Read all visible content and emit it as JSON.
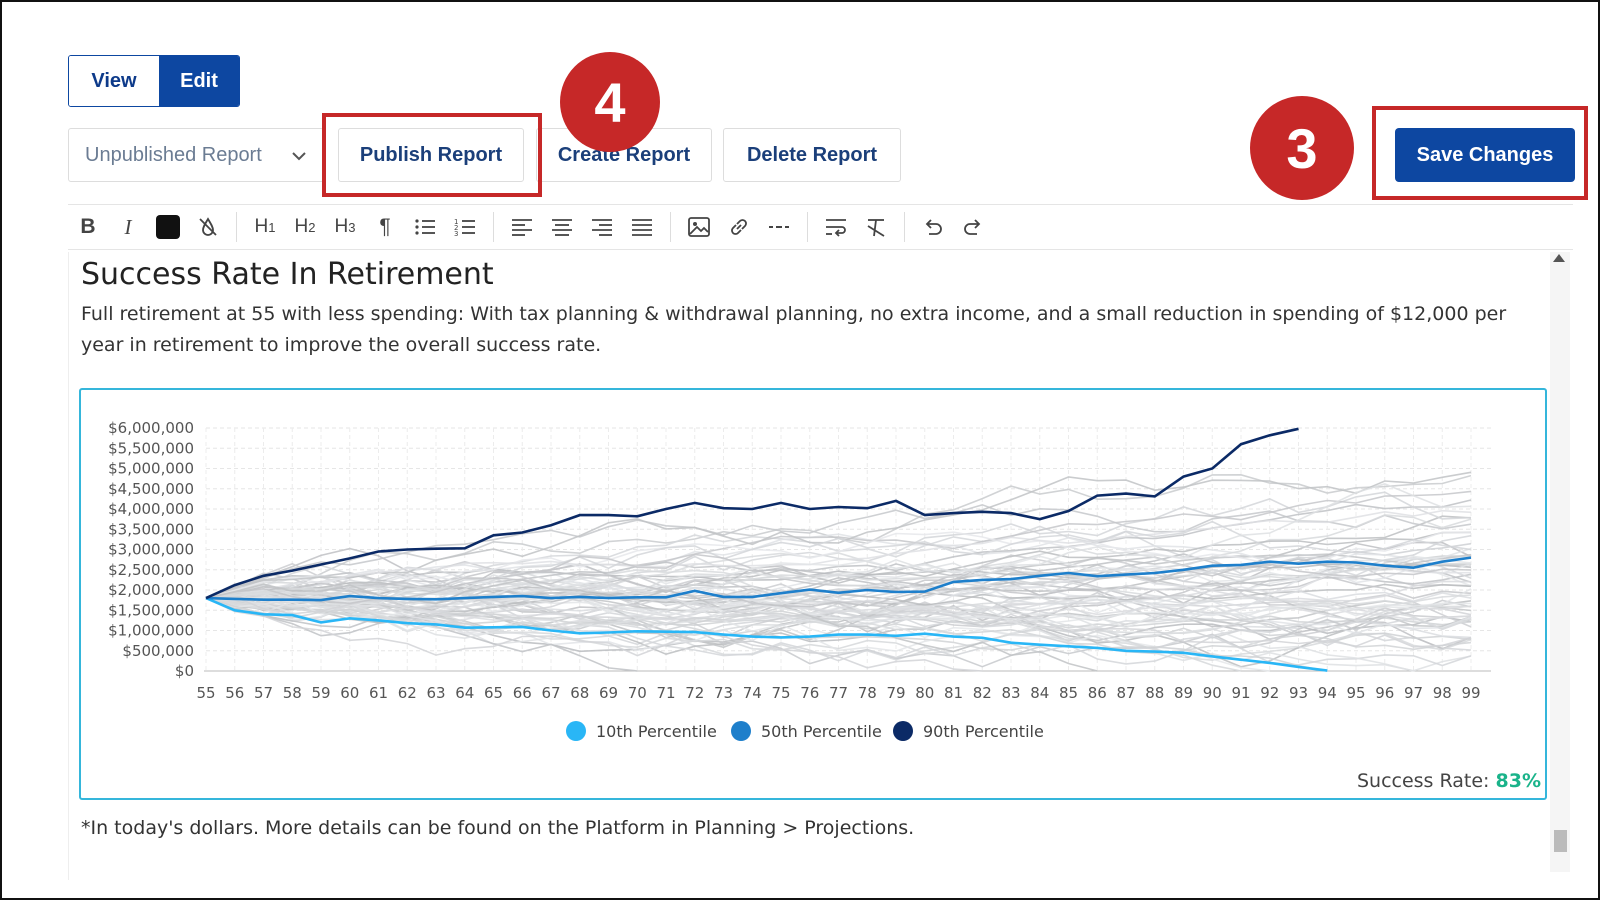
{
  "mode_toggle": {
    "view_label": "View",
    "edit_label": "Edit",
    "active": "Edit"
  },
  "report_actions": {
    "status_selected": "Unpublished Report",
    "publish_label": "Publish Report",
    "create_label": "Create Report",
    "delete_label": "Delete Report",
    "save_label": "Save Changes"
  },
  "callouts": {
    "step_publish": "4",
    "step_save": "3",
    "color": "#c62828"
  },
  "editor_toolbar": [
    "bold-icon",
    "italic-icon",
    "text-color-swatch",
    "clear-color-icon",
    "heading-1-icon",
    "heading-2-icon",
    "heading-3-icon",
    "paragraph-icon",
    "bullet-list-icon",
    "numbered-list-icon",
    "align-left-icon",
    "align-center-icon",
    "align-right-icon",
    "align-justify-icon",
    "image-icon",
    "link-icon",
    "horizontal-rule-icon",
    "wrap-text-icon",
    "clear-format-icon",
    "undo-icon",
    "redo-icon"
  ],
  "document": {
    "heading": "Success Rate In Retirement",
    "paragraph": "Full retirement at 55 with less spending: With tax planning & withdrawal planning, no extra income, and a small reduction in spending of $12,000 per year in retirement to improve the overall success rate.",
    "success_label": "Success Rate:",
    "success_value": "83%",
    "footnote": "*In today's dollars. More details can be found on the Platform in Planning > Projections."
  },
  "colors": {
    "brand": "#0d47a1",
    "success": "#1ab38a",
    "chart_border": "#35b6db"
  },
  "chart_data": {
    "type": "line",
    "title": "",
    "xlabel": "",
    "ylabel": "",
    "x": [
      55,
      56,
      57,
      58,
      59,
      60,
      61,
      62,
      63,
      64,
      65,
      66,
      67,
      68,
      69,
      70,
      71,
      72,
      73,
      74,
      75,
      76,
      77,
      78,
      79,
      80,
      81,
      82,
      83,
      84,
      85,
      86,
      87,
      88,
      89,
      90,
      91,
      92,
      93,
      94,
      95,
      96,
      97,
      98,
      99
    ],
    "ylim": [
      0,
      6000000
    ],
    "y_ticks": [
      "$0",
      "$500,000",
      "$1,000,000",
      "$1,500,000",
      "$2,000,000",
      "$2,500,000",
      "$3,000,000",
      "$3,500,000",
      "$4,000,000",
      "$4,500,000",
      "$5,000,000",
      "$5,500,000",
      "$6,000,000"
    ],
    "grid": true,
    "legend_position": "bottom",
    "series": [
      {
        "name": "10th Percentile",
        "color": "#29b6f6",
        "values": [
          1800000,
          1500000,
          1400000,
          1380000,
          1200000,
          1300000,
          1250000,
          1180000,
          1150000,
          1070000,
          1080000,
          1090000,
          1000000,
          930000,
          950000,
          980000,
          970000,
          960000,
          900000,
          850000,
          830000,
          850000,
          900000,
          900000,
          870000,
          920000,
          850000,
          820000,
          700000,
          650000,
          610000,
          570000,
          500000,
          480000,
          450000,
          360000,
          280000,
          200000,
          100000,
          10000,
          null,
          null,
          null,
          null,
          null
        ]
      },
      {
        "name": "50th Percentile",
        "color": "#1e7fcb",
        "values": [
          1800000,
          1780000,
          1760000,
          1760000,
          1750000,
          1850000,
          1800000,
          1780000,
          1770000,
          1800000,
          1830000,
          1850000,
          1800000,
          1830000,
          1800000,
          1820000,
          1820000,
          1980000,
          1830000,
          1830000,
          1920000,
          2010000,
          1930000,
          2000000,
          1950000,
          1960000,
          2200000,
          2250000,
          2270000,
          2350000,
          2420000,
          2340000,
          2380000,
          2420000,
          2500000,
          2600000,
          2620000,
          2700000,
          2650000,
          2700000,
          2680000,
          2600000,
          2550000,
          2700000,
          2800000
        ]
      },
      {
        "name": "90th Percentile",
        "color": "#0b2a66",
        "values": [
          1800000,
          2120000,
          2350000,
          2480000,
          2630000,
          2780000,
          2950000,
          3000000,
          3020000,
          3030000,
          3350000,
          3420000,
          3600000,
          3850000,
          3850000,
          3820000,
          4000000,
          4150000,
          4020000,
          4000000,
          4150000,
          4000000,
          4050000,
          4020000,
          4200000,
          3850000,
          3900000,
          3930000,
          3900000,
          3750000,
          3950000,
          4330000,
          4380000,
          4310000,
          4800000,
          5000000,
          5600000,
          5820000,
          5980000,
          null,
          null,
          null,
          null,
          null,
          null
        ]
      }
    ]
  }
}
